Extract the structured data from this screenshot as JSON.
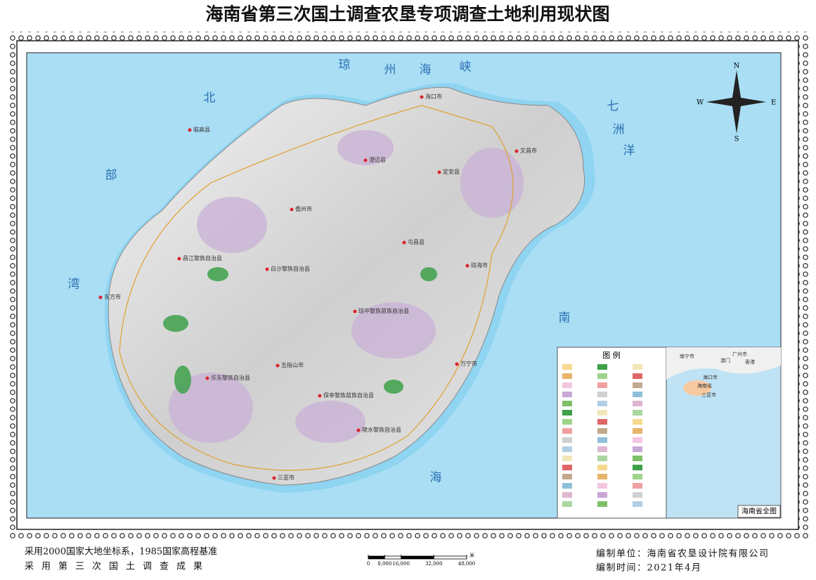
{
  "title": "海南省第三次国土调查农垦专项调查土地利用现状图",
  "seas": {
    "qiongzhou": [
      "琼",
      "州",
      "海",
      "峡"
    ],
    "beibu": [
      "北",
      "部",
      "湾"
    ],
    "qizhou": [
      "七",
      "洲",
      "洋"
    ],
    "nanhai": [
      "南",
      "海"
    ]
  },
  "compass": {
    "n": "N",
    "e": "E",
    "s": "S",
    "w": "W"
  },
  "places": [
    "海口市",
    "文昌市",
    "澄迈县",
    "临高县",
    "定安县",
    "儋州市",
    "屯昌县",
    "琼海市",
    "昌江黎族自治县",
    "白沙黎族自治县",
    "琼中黎族苗族自治县",
    "东方市",
    "万宁市",
    "五指山市",
    "乐东黎族自治县",
    "保亭黎族苗族自治县",
    "陵水黎族自治县",
    "三亚市"
  ],
  "legend": {
    "title": "图 例"
  },
  "inset": {
    "title": "海南省全图",
    "labels": [
      "南宁市",
      "广州市",
      "澳门",
      "香港",
      "海口市",
      "海南省",
      "三亚市"
    ]
  },
  "scale_bar": {
    "unit": "米",
    "ticks": [
      0,
      {
        "value": 8000,
        "label": "8,000"
      },
      {
        "value": 16000,
        "label": "16,000"
      },
      {
        "value": 32000,
        "label": "32,000"
      },
      {
        "value": 48000,
        "label": "48,000"
      }
    ]
  },
  "footer": {
    "left": [
      "采用2000国家大地坐标系，1985国家高程基准",
      "采用第三次国土调查成果"
    ],
    "right": [
      "编制单位：海南省农垦设计院有限公司",
      "编制时间：2021年4月"
    ]
  }
}
